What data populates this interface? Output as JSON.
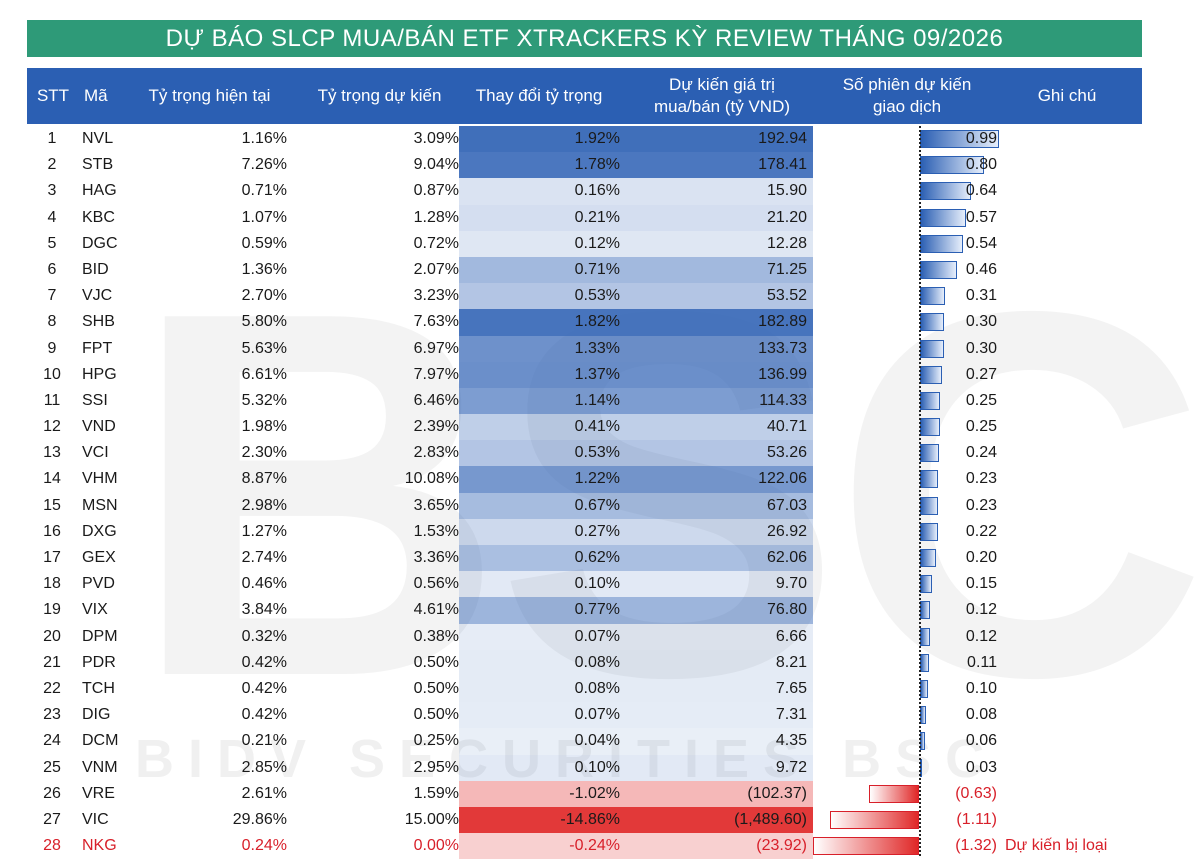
{
  "title": "DỰ BÁO SLCP MUA/BÁN ETF XTRACKERS KỲ REVIEW THÁNG 09/2026",
  "header": {
    "stt": "STT",
    "ma": "Mã",
    "current": "Tỷ trọng hiện tại",
    "expected": "Tỷ trọng dự kiến",
    "change": "Thay đổi tỷ trọng",
    "value_1": "Dự kiến giá trị",
    "value_2": "mua/bán (tỷ VND)",
    "sessions_1": "Số phiên dự kiến",
    "sessions_2": "giao dịch",
    "note": "Ghi chú"
  },
  "watermark": {
    "logo": "BSC",
    "text": "BIDV SECURITIES BSC"
  },
  "colors": {
    "title_bg": "#2e9a78",
    "header_bg": "#2b5fb3",
    "positive": "#2b5fb3",
    "negative": "#e02828",
    "excluded": "#d8202a"
  },
  "rows": [
    {
      "stt": "1",
      "ma": "NVL",
      "current": "1.16%",
      "expected": "3.09%",
      "change": "1.92%",
      "value": "192.94",
      "sessions": "0.99",
      "s": 0.99,
      "v": 192.94,
      "note": ""
    },
    {
      "stt": "2",
      "ma": "STB",
      "current": "7.26%",
      "expected": "9.04%",
      "change": "1.78%",
      "value": "178.41",
      "sessions": "0.80",
      "s": 0.8,
      "v": 178.41,
      "note": ""
    },
    {
      "stt": "3",
      "ma": "HAG",
      "current": "0.71%",
      "expected": "0.87%",
      "change": "0.16%",
      "value": "15.90",
      "sessions": "0.64",
      "s": 0.64,
      "v": 15.9,
      "note": ""
    },
    {
      "stt": "4",
      "ma": "KBC",
      "current": "1.07%",
      "expected": "1.28%",
      "change": "0.21%",
      "value": "21.20",
      "sessions": "0.57",
      "s": 0.57,
      "v": 21.2,
      "note": ""
    },
    {
      "stt": "5",
      "ma": "DGC",
      "current": "0.59%",
      "expected": "0.72%",
      "change": "0.12%",
      "value": "12.28",
      "sessions": "0.54",
      "s": 0.54,
      "v": 12.28,
      "note": ""
    },
    {
      "stt": "6",
      "ma": "BID",
      "current": "1.36%",
      "expected": "2.07%",
      "change": "0.71%",
      "value": "71.25",
      "sessions": "0.46",
      "s": 0.46,
      "v": 71.25,
      "note": ""
    },
    {
      "stt": "7",
      "ma": "VJC",
      "current": "2.70%",
      "expected": "3.23%",
      "change": "0.53%",
      "value": "53.52",
      "sessions": "0.31",
      "s": 0.31,
      "v": 53.52,
      "note": ""
    },
    {
      "stt": "8",
      "ma": "SHB",
      "current": "5.80%",
      "expected": "7.63%",
      "change": "1.82%",
      "value": "182.89",
      "sessions": "0.30",
      "s": 0.3,
      "v": 182.89,
      "note": ""
    },
    {
      "stt": "9",
      "ma": "FPT",
      "current": "5.63%",
      "expected": "6.97%",
      "change": "1.33%",
      "value": "133.73",
      "sessions": "0.30",
      "s": 0.3,
      "v": 133.73,
      "note": ""
    },
    {
      "stt": "10",
      "ma": "HPG",
      "current": "6.61%",
      "expected": "7.97%",
      "change": "1.37%",
      "value": "136.99",
      "sessions": "0.27",
      "s": 0.27,
      "v": 136.99,
      "note": ""
    },
    {
      "stt": "11",
      "ma": "SSI",
      "current": "5.32%",
      "expected": "6.46%",
      "change": "1.14%",
      "value": "114.33",
      "sessions": "0.25",
      "s": 0.25,
      "v": 114.33,
      "note": ""
    },
    {
      "stt": "12",
      "ma": "VND",
      "current": "1.98%",
      "expected": "2.39%",
      "change": "0.41%",
      "value": "40.71",
      "sessions": "0.25",
      "s": 0.25,
      "v": 40.71,
      "note": ""
    },
    {
      "stt": "13",
      "ma": "VCI",
      "current": "2.30%",
      "expected": "2.83%",
      "change": "0.53%",
      "value": "53.26",
      "sessions": "0.24",
      "s": 0.24,
      "v": 53.26,
      "note": ""
    },
    {
      "stt": "14",
      "ma": "VHM",
      "current": "8.87%",
      "expected": "10.08%",
      "change": "1.22%",
      "value": "122.06",
      "sessions": "0.23",
      "s": 0.23,
      "v": 122.06,
      "note": ""
    },
    {
      "stt": "15",
      "ma": "MSN",
      "current": "2.98%",
      "expected": "3.65%",
      "change": "0.67%",
      "value": "67.03",
      "sessions": "0.23",
      "s": 0.23,
      "v": 67.03,
      "note": ""
    },
    {
      "stt": "16",
      "ma": "DXG",
      "current": "1.27%",
      "expected": "1.53%",
      "change": "0.27%",
      "value": "26.92",
      "sessions": "0.22",
      "s": 0.22,
      "v": 26.92,
      "note": ""
    },
    {
      "stt": "17",
      "ma": "GEX",
      "current": "2.74%",
      "expected": "3.36%",
      "change": "0.62%",
      "value": "62.06",
      "sessions": "0.20",
      "s": 0.2,
      "v": 62.06,
      "note": ""
    },
    {
      "stt": "18",
      "ma": "PVD",
      "current": "0.46%",
      "expected": "0.56%",
      "change": "0.10%",
      "value": "9.70",
      "sessions": "0.15",
      "s": 0.15,
      "v": 9.7,
      "note": ""
    },
    {
      "stt": "19",
      "ma": "VIX",
      "current": "3.84%",
      "expected": "4.61%",
      "change": "0.77%",
      "value": "76.80",
      "sessions": "0.12",
      "s": 0.12,
      "v": 76.8,
      "note": ""
    },
    {
      "stt": "20",
      "ma": "DPM",
      "current": "0.32%",
      "expected": "0.38%",
      "change": "0.07%",
      "value": "6.66",
      "sessions": "0.12",
      "s": 0.12,
      "v": 6.66,
      "note": ""
    },
    {
      "stt": "21",
      "ma": "PDR",
      "current": "0.42%",
      "expected": "0.50%",
      "change": "0.08%",
      "value": "8.21",
      "sessions": "0.11",
      "s": 0.11,
      "v": 8.21,
      "note": ""
    },
    {
      "stt": "22",
      "ma": "TCH",
      "current": "0.42%",
      "expected": "0.50%",
      "change": "0.08%",
      "value": "7.65",
      "sessions": "0.10",
      "s": 0.1,
      "v": 7.65,
      "note": ""
    },
    {
      "stt": "23",
      "ma": "DIG",
      "current": "0.42%",
      "expected": "0.50%",
      "change": "0.07%",
      "value": "7.31",
      "sessions": "0.08",
      "s": 0.08,
      "v": 7.31,
      "note": ""
    },
    {
      "stt": "24",
      "ma": "DCM",
      "current": "0.21%",
      "expected": "0.25%",
      "change": "0.04%",
      "value": "4.35",
      "sessions": "0.06",
      "s": 0.06,
      "v": 4.35,
      "note": ""
    },
    {
      "stt": "25",
      "ma": "VNM",
      "current": "2.85%",
      "expected": "2.95%",
      "change": "0.10%",
      "value": "9.72",
      "sessions": "0.03",
      "s": 0.03,
      "v": 9.72,
      "note": ""
    },
    {
      "stt": "26",
      "ma": "VRE",
      "current": "2.61%",
      "expected": "1.59%",
      "change": "-1.02%",
      "value": "(102.37)",
      "sessions": "(0.63)",
      "s": -0.63,
      "v": -102.37,
      "note": ""
    },
    {
      "stt": "27",
      "ma": "VIC",
      "current": "29.86%",
      "expected": "15.00%",
      "change": "-14.86%",
      "value": "(1,489.60)",
      "sessions": "(1.11)",
      "s": -1.11,
      "v": -1489.6,
      "note": ""
    },
    {
      "stt": "28",
      "ma": "NKG",
      "current": "0.24%",
      "expected": "0.00%",
      "change": "-0.24%",
      "value": "(23.92)",
      "sessions": "(1.32)",
      "s": -1.32,
      "v": -23.92,
      "note": "Dự kiến bị loại",
      "excluded": true
    }
  ]
}
